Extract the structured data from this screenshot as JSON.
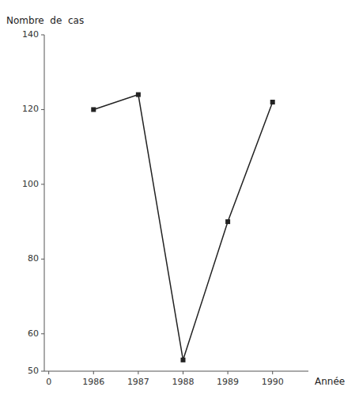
{
  "chart_data": {
    "type": "line",
    "categories": [
      "0",
      "1986",
      "1987",
      "1988",
      "1989",
      "1990"
    ],
    "values": [
      null,
      120,
      124,
      53,
      90,
      122
    ],
    "color": "#222222",
    "marker": "square",
    "line_style": "solid",
    "ylabel": "Nombre  de  cas",
    "xlabel": "Année",
    "ylim": [
      50,
      140
    ],
    "yticks": [
      50,
      60,
      80,
      100,
      120,
      140
    ],
    "grid": false
  }
}
